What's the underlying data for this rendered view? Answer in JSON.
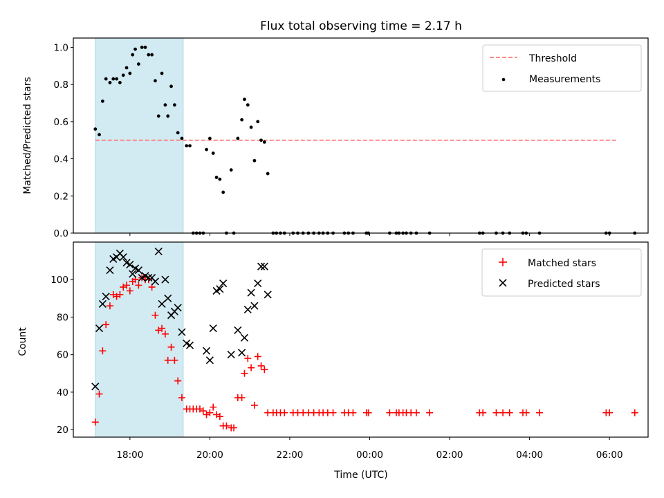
{
  "chart_data": {
    "title": "Flux total observing time = 2.17 h",
    "xlabel": "Time (UTC)",
    "x_ticks": [
      "18:00",
      "20:00",
      "22:00",
      "00:00",
      "02:00",
      "04:00",
      "06:00"
    ],
    "shaded_region": {
      "x_start": "17:08",
      "x_end": "19:20",
      "color": "#add8e6"
    },
    "panels": [
      {
        "type": "scatter",
        "ylabel": "Matched/Predicted stars",
        "ylim": [
          0,
          1.05
        ],
        "y_ticks": [
          "0.0",
          "0.2",
          "0.4",
          "0.6",
          "0.8",
          "1.0"
        ],
        "legend": {
          "position": "top-right",
          "entries": [
            "Threshold",
            "Measurements"
          ]
        },
        "threshold": {
          "name": "Threshold",
          "value": 0.5,
          "x_start": "17:08",
          "x_end": "06:12",
          "color": "#ff7777"
        },
        "series": [
          {
            "name": "Measurements",
            "marker": "dot",
            "color": "#000000",
            "points": [
              [
                "17:08",
                0.56
              ],
              [
                "17:14",
                0.53
              ],
              [
                "17:19",
                0.71
              ],
              [
                "17:24",
                0.83
              ],
              [
                "17:30",
                0.81
              ],
              [
                "17:35",
                0.83
              ],
              [
                "17:40",
                0.83
              ],
              [
                "17:45",
                0.81
              ],
              [
                "17:50",
                0.85
              ],
              [
                "17:55",
                0.89
              ],
              [
                "18:00",
                0.86
              ],
              [
                "18:04",
                0.96
              ],
              [
                "18:08",
                0.99
              ],
              [
                "18:13",
                0.91
              ],
              [
                "18:18",
                1.0
              ],
              [
                "18:23",
                1.0
              ],
              [
                "18:28",
                0.96
              ],
              [
                "18:33",
                0.96
              ],
              [
                "18:38",
                0.82
              ],
              [
                "18:43",
                0.63
              ],
              [
                "18:48",
                0.86
              ],
              [
                "18:53",
                0.69
              ],
              [
                "18:57",
                0.63
              ],
              [
                "19:02",
                0.79
              ],
              [
                "19:07",
                0.69
              ],
              [
                "19:12",
                0.54
              ],
              [
                "19:18",
                0.51
              ],
              [
                "19:25",
                0.47
              ],
              [
                "19:30",
                0.47
              ],
              [
                "19:35",
                0.0
              ],
              [
                "19:40",
                0.0
              ],
              [
                "19:45",
                0.0
              ],
              [
                "19:50",
                0.0
              ],
              [
                "19:55",
                0.45
              ],
              [
                "20:00",
                0.51
              ],
              [
                "20:05",
                0.43
              ],
              [
                "20:10",
                0.3
              ],
              [
                "20:15",
                0.29
              ],
              [
                "20:20",
                0.22
              ],
              [
                "20:25",
                0.0
              ],
              [
                "20:32",
                0.34
              ],
              [
                "20:36",
                0.0
              ],
              [
                "20:42",
                0.51
              ],
              [
                "20:48",
                0.61
              ],
              [
                "20:52",
                0.72
              ],
              [
                "20:57",
                0.69
              ],
              [
                "21:02",
                0.57
              ],
              [
                "21:07",
                0.39
              ],
              [
                "21:12",
                0.6
              ],
              [
                "21:17",
                0.5
              ],
              [
                "21:22",
                0.49
              ],
              [
                "21:27",
                0.32
              ],
              [
                "21:35",
                0.0
              ],
              [
                "21:40",
                0.0
              ],
              [
                "21:46",
                0.0
              ],
              [
                "21:52",
                0.0
              ],
              [
                "22:05",
                0.0
              ],
              [
                "22:12",
                0.0
              ],
              [
                "22:20",
                0.0
              ],
              [
                "22:28",
                0.0
              ],
              [
                "22:36",
                0.0
              ],
              [
                "22:44",
                0.0
              ],
              [
                "22:50",
                0.0
              ],
              [
                "22:57",
                0.0
              ],
              [
                "23:05",
                0.0
              ],
              [
                "23:22",
                0.0
              ],
              [
                "23:28",
                0.0
              ],
              [
                "23:35",
                0.0
              ],
              [
                "23:55",
                0.0
              ],
              [
                "23:58",
                0.0
              ],
              [
                "00:30",
                0.0
              ],
              [
                "00:40",
                0.0
              ],
              [
                "00:44",
                0.0
              ],
              [
                "00:50",
                0.0
              ],
              [
                "00:55",
                0.0
              ],
              [
                "01:02",
                0.0
              ],
              [
                "01:10",
                0.0
              ],
              [
                "01:30",
                0.0
              ],
              [
                "02:45",
                0.0
              ],
              [
                "02:50",
                0.0
              ],
              [
                "03:10",
                0.0
              ],
              [
                "03:20",
                0.0
              ],
              [
                "03:30",
                0.0
              ],
              [
                "03:50",
                0.0
              ],
              [
                "03:55",
                0.0
              ],
              [
                "04:15",
                0.0
              ],
              [
                "05:55",
                0.0
              ],
              [
                "06:00",
                0.0
              ],
              [
                "06:38",
                0.0
              ]
            ]
          }
        ]
      },
      {
        "type": "scatter",
        "ylabel": "Count",
        "ylim": [
          16,
          120
        ],
        "y_ticks": [
          "20",
          "40",
          "60",
          "80",
          "100"
        ],
        "legend": {
          "position": "top-right",
          "entries": [
            "Matched stars",
            "Predicted stars"
          ]
        },
        "series": [
          {
            "name": "Matched stars",
            "marker": "plus",
            "color": "#ff0000",
            "points": [
              [
                "17:08",
                24
              ],
              [
                "17:14",
                39
              ],
              [
                "17:19",
                62
              ],
              [
                "17:24",
                76
              ],
              [
                "17:30",
                86
              ],
              [
                "17:35",
                92
              ],
              [
                "17:40",
                91
              ],
              [
                "17:45",
                92
              ],
              [
                "17:50",
                96
              ],
              [
                "17:55",
                97
              ],
              [
                "18:00",
                94
              ],
              [
                "18:04",
                99
              ],
              [
                "18:08",
                100
              ],
              [
                "18:13",
                97
              ],
              [
                "18:18",
                101
              ],
              [
                "18:23",
                100
              ],
              [
                "18:28",
                100
              ],
              [
                "18:33",
                96
              ],
              [
                "18:38",
                81
              ],
              [
                "18:43",
                73
              ],
              [
                "18:48",
                74
              ],
              [
                "18:53",
                71
              ],
              [
                "18:57",
                57
              ],
              [
                "19:02",
                64
              ],
              [
                "19:07",
                57
              ],
              [
                "19:12",
                46
              ],
              [
                "19:18",
                37
              ],
              [
                "19:25",
                31
              ],
              [
                "19:30",
                31
              ],
              [
                "19:35",
                31
              ],
              [
                "19:40",
                31
              ],
              [
                "19:45",
                31
              ],
              [
                "19:50",
                30
              ],
              [
                "19:55",
                28
              ],
              [
                "20:00",
                29
              ],
              [
                "20:05",
                32
              ],
              [
                "20:10",
                28
              ],
              [
                "20:15",
                27
              ],
              [
                "20:20",
                22
              ],
              [
                "20:25",
                22
              ],
              [
                "20:32",
                21
              ],
              [
                "20:36",
                21
              ],
              [
                "20:42",
                37
              ],
              [
                "20:48",
                37
              ],
              [
                "20:52",
                50
              ],
              [
                "20:57",
                58
              ],
              [
                "21:02",
                53
              ],
              [
                "21:07",
                33
              ],
              [
                "21:12",
                59
              ],
              [
                "21:17",
                54
              ],
              [
                "21:22",
                52
              ],
              [
                "21:27",
                29
              ],
              [
                "21:35",
                29
              ],
              [
                "21:40",
                29
              ],
              [
                "21:46",
                29
              ],
              [
                "21:52",
                29
              ],
              [
                "22:05",
                29
              ],
              [
                "22:12",
                29
              ],
              [
                "22:20",
                29
              ],
              [
                "22:28",
                29
              ],
              [
                "22:36",
                29
              ],
              [
                "22:44",
                29
              ],
              [
                "22:50",
                29
              ],
              [
                "22:57",
                29
              ],
              [
                "23:05",
                29
              ],
              [
                "23:22",
                29
              ],
              [
                "23:28",
                29
              ],
              [
                "23:35",
                29
              ],
              [
                "23:55",
                29
              ],
              [
                "23:58",
                29
              ],
              [
                "00:30",
                29
              ],
              [
                "00:40",
                29
              ],
              [
                "00:44",
                29
              ],
              [
                "00:50",
                29
              ],
              [
                "00:55",
                29
              ],
              [
                "01:02",
                29
              ],
              [
                "01:10",
                29
              ],
              [
                "01:30",
                29
              ],
              [
                "02:45",
                29
              ],
              [
                "02:50",
                29
              ],
              [
                "03:10",
                29
              ],
              [
                "03:20",
                29
              ],
              [
                "03:30",
                29
              ],
              [
                "03:50",
                29
              ],
              [
                "03:55",
                29
              ],
              [
                "04:15",
                29
              ],
              [
                "05:55",
                29
              ],
              [
                "06:00",
                29
              ],
              [
                "06:38",
                29
              ]
            ]
          },
          {
            "name": "Predicted stars",
            "marker": "x",
            "color": "#000000",
            "points": [
              [
                "17:08",
                43
              ],
              [
                "17:14",
                74
              ],
              [
                "17:19",
                87
              ],
              [
                "17:24",
                91
              ],
              [
                "17:30",
                105
              ],
              [
                "17:35",
                111
              ],
              [
                "17:40",
                112
              ],
              [
                "17:45",
                114
              ],
              [
                "17:50",
                112
              ],
              [
                "17:55",
                109
              ],
              [
                "18:00",
                108
              ],
              [
                "18:04",
                103
              ],
              [
                "18:08",
                106
              ],
              [
                "18:13",
                105
              ],
              [
                "18:18",
                101
              ],
              [
                "18:23",
                102
              ],
              [
                "18:28",
                101
              ],
              [
                "18:33",
                101
              ],
              [
                "18:38",
                99
              ],
              [
                "18:43",
                115
              ],
              [
                "18:48",
                87
              ],
              [
                "18:53",
                100
              ],
              [
                "18:57",
                90
              ],
              [
                "19:02",
                81
              ],
              [
                "19:07",
                83
              ],
              [
                "19:12",
                85
              ],
              [
                "19:18",
                72
              ],
              [
                "19:25",
                66
              ],
              [
                "19:30",
                65
              ],
              [
                "19:55",
                62
              ],
              [
                "20:00",
                57
              ],
              [
                "20:05",
                74
              ],
              [
                "20:10",
                94
              ],
              [
                "20:15",
                95
              ],
              [
                "20:20",
                98
              ],
              [
                "20:32",
                60
              ],
              [
                "20:42",
                73
              ],
              [
                "20:48",
                61
              ],
              [
                "20:52",
                69
              ],
              [
                "20:57",
                84
              ],
              [
                "21:02",
                93
              ],
              [
                "21:07",
                86
              ],
              [
                "21:12",
                98
              ],
              [
                "21:17",
                107
              ],
              [
                "21:22",
                107
              ],
              [
                "21:27",
                92
              ]
            ]
          }
        ]
      }
    ]
  }
}
